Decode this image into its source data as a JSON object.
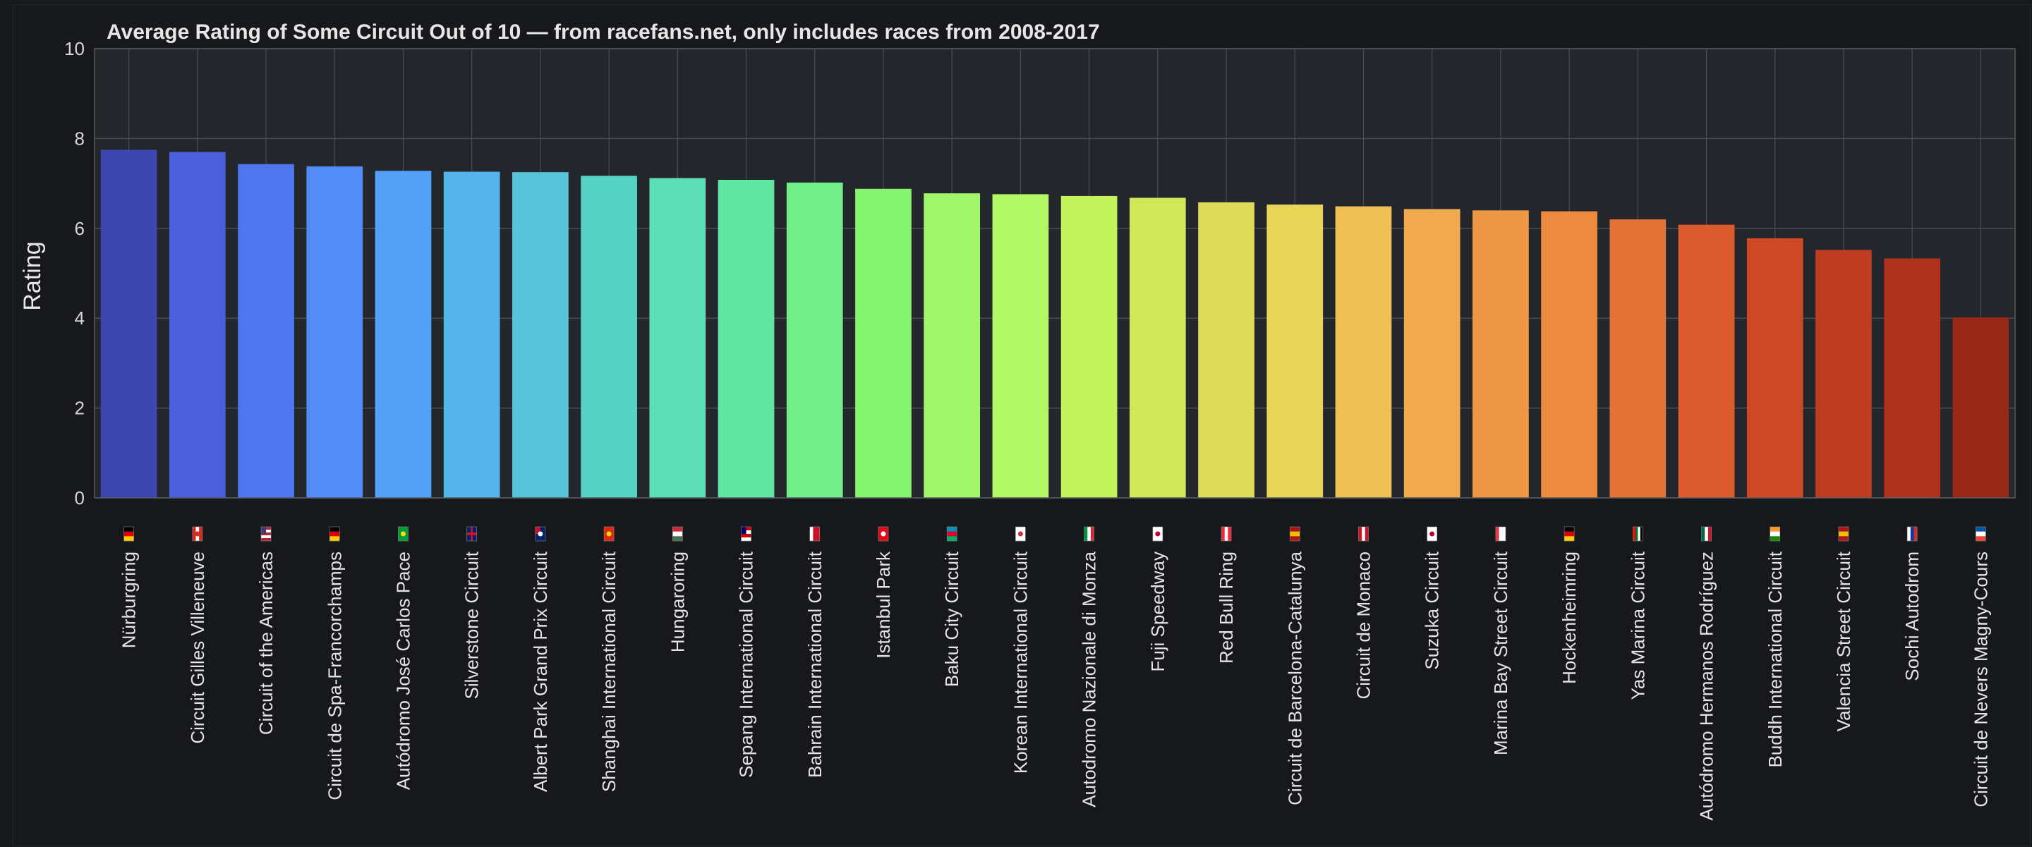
{
  "chart_data": {
    "type": "bar",
    "title": "Average Rating of Some Circuit Out of 10 — from racefans.net, only includes races from 2008-2017",
    "xlabel": "",
    "ylabel": "Rating",
    "ylim": [
      0,
      10
    ],
    "yticks": [
      0,
      2,
      4,
      6,
      8,
      10
    ],
    "grid": true,
    "categories": [
      "Nürburgring",
      "Circuit Gilles Villeneuve",
      "Circuit of the Americas",
      "Circuit de Spa-Francorchamps",
      "Autódromo José Carlos Pace",
      "Silverstone Circuit",
      "Albert Park Grand Prix Circuit",
      "Shanghai International Circuit",
      "Hungaroring",
      "Sepang International Circuit",
      "Bahrain International Circuit",
      "Istanbul Park",
      "Baku City Circuit",
      "Korean International Circuit",
      "Autodromo Nazionale di Monza",
      "Fuji Speedway",
      "Red Bull Ring",
      "Circuit de Barcelona-Catalunya",
      "Circuit de Monaco",
      "Suzuka Circuit",
      "Marina Bay Street Circuit",
      "Hockenheimring",
      "Yas Marina Circuit",
      "Autódromo Hermanos Rodríguez",
      "Buddh International Circuit",
      "Valencia Street Circuit",
      "Sochi Autodrom",
      "Circuit de Nevers Magny-Cours"
    ],
    "values": [
      7.75,
      7.7,
      7.43,
      7.38,
      7.28,
      7.26,
      7.25,
      7.17,
      7.12,
      7.08,
      7.02,
      6.88,
      6.78,
      6.76,
      6.72,
      6.68,
      6.58,
      6.53,
      6.49,
      6.43,
      6.4,
      6.38,
      6.2,
      6.08,
      5.78,
      5.52,
      5.33,
      4.02
    ],
    "bar_colors": [
      "#3e47b0",
      "#4a5fd9",
      "#4f76ef",
      "#528cf8",
      "#53a1f7",
      "#55b4ea",
      "#58c4d9",
      "#57d3c6",
      "#5cdfb7",
      "#62e6a3",
      "#74ee8b",
      "#85f46e",
      "#a2f66a",
      "#b2f865",
      "#c2f35a",
      "#d0e858",
      "#dedb59",
      "#e8d457",
      "#eebf52",
      "#f0aa4d",
      "#ee9846",
      "#ec8a40",
      "#e57337",
      "#dc5c2f",
      "#ce4a27",
      "#bf3b21",
      "#ae321c",
      "#972817"
    ],
    "flags": [
      {
        "stripes": [
          "#000000",
          "#dd0000",
          "#ffce00"
        ],
        "dir": "h"
      },
      {
        "stripes": [
          "#d52b1e",
          "#ffffff",
          "#d52b1e"
        ],
        "dir": "v",
        "mark": "#d52b1e"
      },
      {
        "stripes": [
          "#b22234",
          "#ffffff",
          "#b22234",
          "#ffffff",
          "#b22234"
        ],
        "dir": "h",
        "canton": "#3c3b6e"
      },
      {
        "stripes": [
          "#000000",
          "#dd0000",
          "#ffce00"
        ],
        "dir": "h"
      },
      {
        "stripes": [
          "#009c3b"
        ],
        "dir": "h",
        "mark": "#ffdf00"
      },
      {
        "stripes": [
          "#012169"
        ],
        "dir": "h",
        "cross": "#c8102e"
      },
      {
        "stripes": [
          "#012169"
        ],
        "dir": "h",
        "canton": "#c8102e",
        "mark": "#ffffff"
      },
      {
        "stripes": [
          "#de2910"
        ],
        "dir": "h",
        "mark": "#ffde00"
      },
      {
        "stripes": [
          "#ce2939",
          "#ffffff",
          "#477050"
        ],
        "dir": "h"
      },
      {
        "stripes": [
          "#cc0001",
          "#ffffff",
          "#cc0001",
          "#ffffff"
        ],
        "dir": "h",
        "canton": "#010066"
      },
      {
        "stripes": [
          "#ffffff",
          "#ce1126",
          "#ce1126"
        ],
        "dir": "v"
      },
      {
        "stripes": [
          "#e30a17"
        ],
        "dir": "h",
        "mark": "#ffffff"
      },
      {
        "stripes": [
          "#0092bc",
          "#e4002b",
          "#00af66"
        ],
        "dir": "h"
      },
      {
        "stripes": [
          "#ffffff"
        ],
        "dir": "h",
        "mark": "#cd2e3a"
      },
      {
        "stripes": [
          "#009246",
          "#ffffff",
          "#ce2b37"
        ],
        "dir": "v"
      },
      {
        "stripes": [
          "#ffffff"
        ],
        "dir": "h",
        "mark": "#bc002d"
      },
      {
        "stripes": [
          "#ed2939",
          "#ffffff",
          "#ed2939"
        ],
        "dir": "v"
      },
      {
        "stripes": [
          "#aa151b",
          "#f1bf00",
          "#aa151b"
        ],
        "dir": "h"
      },
      {
        "stripes": [
          "#ce1126",
          "#ffffff",
          "#ce1126"
        ],
        "dir": "v"
      },
      {
        "stripes": [
          "#ffffff"
        ],
        "dir": "h",
        "mark": "#bc002d"
      },
      {
        "stripes": [
          "#ef3340",
          "#ffffff",
          "#ffffff"
        ],
        "dir": "v"
      },
      {
        "stripes": [
          "#000000",
          "#dd0000",
          "#ffce00"
        ],
        "dir": "h"
      },
      {
        "stripes": [
          "#ff0000",
          "#00732f",
          "#ffffff",
          "#000000"
        ],
        "dir": "v"
      },
      {
        "stripes": [
          "#006847",
          "#ffffff",
          "#ce1126"
        ],
        "dir": "v"
      },
      {
        "stripes": [
          "#ff9933",
          "#ffffff",
          "#138808"
        ],
        "dir": "h"
      },
      {
        "stripes": [
          "#aa151b",
          "#f1bf00",
          "#aa151b"
        ],
        "dir": "h"
      },
      {
        "stripes": [
          "#ffffff",
          "#0039a6",
          "#d52b1e"
        ],
        "dir": "v"
      },
      {
        "stripes": [
          "#0055a4",
          "#ffffff",
          "#ef4135"
        ],
        "dir": "h"
      }
    ]
  }
}
